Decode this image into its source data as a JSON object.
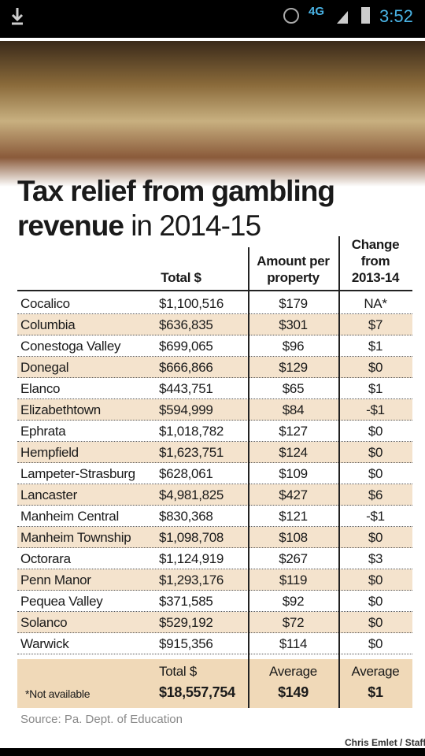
{
  "status": {
    "network": "4G",
    "time": "3:52"
  },
  "title": {
    "line1": "Tax relief from gambling",
    "line2_bold": "revenue",
    "line2_rest": "in 2014-15"
  },
  "table": {
    "headers": [
      "Total $",
      "Amount per property",
      "Change from 2013-14"
    ],
    "rows": [
      [
        "Cocalico",
        "$1,100,516",
        "$179",
        "NA*"
      ],
      [
        "Columbia",
        "$636,835",
        "$301",
        "$7"
      ],
      [
        "Conestoga Valley",
        "$699,065",
        "$96",
        "$1"
      ],
      [
        "Donegal",
        "$666,866",
        "$129",
        "$0"
      ],
      [
        "Elanco",
        "$443,751",
        "$65",
        "$1"
      ],
      [
        "Elizabethtown",
        "$594,999",
        "$84",
        "-$1"
      ],
      [
        "Ephrata",
        "$1,018,782",
        "$127",
        "$0"
      ],
      [
        "Hempfield",
        "$1,623,751",
        "$124",
        "$0"
      ],
      [
        "Lampeter-Strasburg",
        "$628,061",
        "$109",
        "$0"
      ],
      [
        "Lancaster",
        "$4,981,825",
        "$427",
        "$6"
      ],
      [
        "Manheim Central",
        "$830,368",
        "$121",
        "-$1"
      ],
      [
        "Manheim Township",
        "$1,098,708",
        "$108",
        "$0"
      ],
      [
        "Octorara",
        "$1,124,919",
        "$267",
        "$3"
      ],
      [
        "Penn Manor",
        "$1,293,176",
        "$119",
        "$0"
      ],
      [
        "Pequea Valley",
        "$371,585",
        "$92",
        "$0"
      ],
      [
        "Solanco",
        "$529,192",
        "$72",
        "$0"
      ],
      [
        "Warwick",
        "$915,356",
        "$114",
        "$0"
      ]
    ],
    "footer": {
      "note": "*Not available",
      "labels": [
        "Total $",
        "Average",
        "Average"
      ],
      "values": [
        "$18,557,754",
        "$149",
        "$1"
      ]
    }
  },
  "source": "Source: Pa. Dept. of Education",
  "credit": "Chris Emlet / Staff"
}
